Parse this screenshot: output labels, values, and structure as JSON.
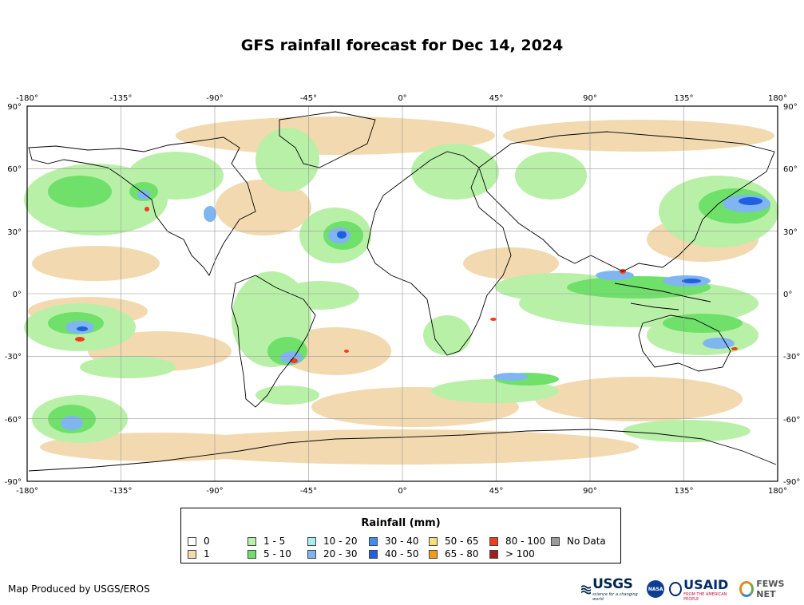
{
  "title": "GFS rainfall forecast for Dec 14, 2024",
  "map": {
    "lon_ticks": [
      "-180°",
      "-135°",
      "-90°",
      "-45°",
      "0°",
      "45°",
      "90°",
      "135°",
      "180°"
    ],
    "lat_ticks": [
      "90°",
      "60°",
      "30°",
      "0°",
      "-30°",
      "-60°",
      "-90°"
    ],
    "background_color": "#ffffff",
    "land_outline_color": "#000000"
  },
  "legend": {
    "title": "Rainfall (mm)",
    "items": [
      {
        "label": "0",
        "color": "#ffffff"
      },
      {
        "label": "1",
        "color": "#f2d9b0"
      },
      {
        "label": "1 - 5",
        "color": "#b9f0a8"
      },
      {
        "label": "5 - 10",
        "color": "#6fe06a"
      },
      {
        "label": "10 - 20",
        "color": "#a8eef0"
      },
      {
        "label": "20 - 30",
        "color": "#7fb6f2"
      },
      {
        "label": "30 - 40",
        "color": "#3c8ff0"
      },
      {
        "label": "40 - 50",
        "color": "#1f5fe0"
      },
      {
        "label": "50 - 65",
        "color": "#f6de7a"
      },
      {
        "label": "65 - 80",
        "color": "#f49a1e"
      },
      {
        "label": "80 - 100",
        "color": "#f23c1c"
      },
      {
        "label": "> 100",
        "color": "#a01e1e"
      },
      {
        "label": "No Data",
        "color": "#999999"
      }
    ]
  },
  "credit": "Map Produced by USGS/EROS",
  "logos": {
    "usgs": "USGS",
    "usgs_tagline": "science for a changing world",
    "nasa": "NASA",
    "usaid": "USAID",
    "usaid_tagline": "FROM THE AMERICAN PEOPLE",
    "fews": "FEWS NET"
  }
}
